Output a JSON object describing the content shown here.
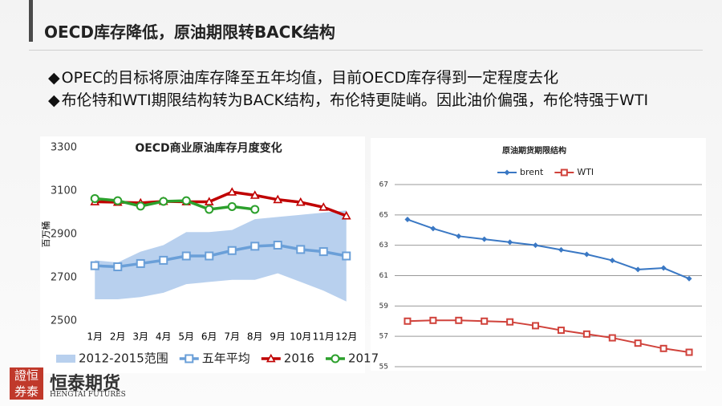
{
  "title": "OECD库存降低，原油期限转BACK结构",
  "bullets": [
    "OPEC的目标将原油库存降至五年均值，目前OECD库存得到一定程度去化",
    "布伦特和WTI期限结构转为BACK结构，布伦特更陡峭。因此油价偏强，布伦特强于WTI"
  ],
  "logo": {
    "name": "恒泰期货",
    "subtitle": "HENGTAI FUTURES"
  },
  "chart_data": [
    {
      "type": "line",
      "title": "OECD商业原油库存月度变化",
      "y_label": "百万桶",
      "categories": [
        "1月",
        "2月",
        "3月",
        "4月",
        "5月",
        "6月",
        "7月",
        "8月",
        "9月",
        "10月",
        "11月",
        "12月"
      ],
      "ylim": [
        2500,
        3300
      ],
      "yticks": [
        2500,
        2700,
        2900,
        3100,
        3300
      ],
      "grid": false,
      "series": [
        {
          "name": "2012-2015范围",
          "type": "range",
          "color": "#b8d0ee",
          "low": [
            2600,
            2600,
            2610,
            2630,
            2670,
            2680,
            2690,
            2690,
            2720,
            2680,
            2640,
            2590
          ],
          "high": [
            2780,
            2770,
            2820,
            2850,
            2910,
            2910,
            2920,
            2970,
            2980,
            2990,
            3000,
            3010
          ]
        },
        {
          "name": "五年平均",
          "color": "#6a9fd8",
          "marker": "square",
          "values": [
            2755,
            2750,
            2765,
            2780,
            2800,
            2800,
            2825,
            2845,
            2850,
            2830,
            2820,
            2800
          ]
        },
        {
          "name": "2016",
          "color": "#c00000",
          "marker": "triangle",
          "values": [
            3050,
            3048,
            3045,
            3052,
            3050,
            3050,
            3095,
            3080,
            3060,
            3048,
            3025,
            2985
          ]
        },
        {
          "name": "2017",
          "color": "#2ca02c",
          "marker": "circle",
          "values": [
            3065,
            3055,
            3030,
            3052,
            3055,
            3015,
            3028,
            3015,
            null,
            null,
            null,
            null
          ]
        }
      ]
    },
    {
      "type": "line",
      "title": "原油期货期限结构",
      "categories": [
        null,
        null,
        null,
        null,
        null,
        null,
        null,
        null,
        null,
        null,
        null,
        null
      ],
      "ylim": [
        55,
        67
      ],
      "yticks": [
        55,
        57,
        59,
        61,
        63,
        65,
        67
      ],
      "grid": true,
      "series": [
        {
          "name": "brent",
          "color": "#3a78c4",
          "marker": "diamond",
          "values": [
            64.7,
            64.1,
            63.6,
            63.4,
            63.2,
            63.0,
            62.7,
            62.4,
            62.0,
            61.4,
            61.5,
            60.8
          ]
        },
        {
          "name": "WTI",
          "color": "#d0423b",
          "marker": "square",
          "values": [
            58.0,
            58.05,
            58.05,
            58.0,
            57.95,
            57.7,
            57.4,
            57.15,
            56.9,
            56.55,
            56.2,
            55.95
          ]
        }
      ]
    }
  ]
}
